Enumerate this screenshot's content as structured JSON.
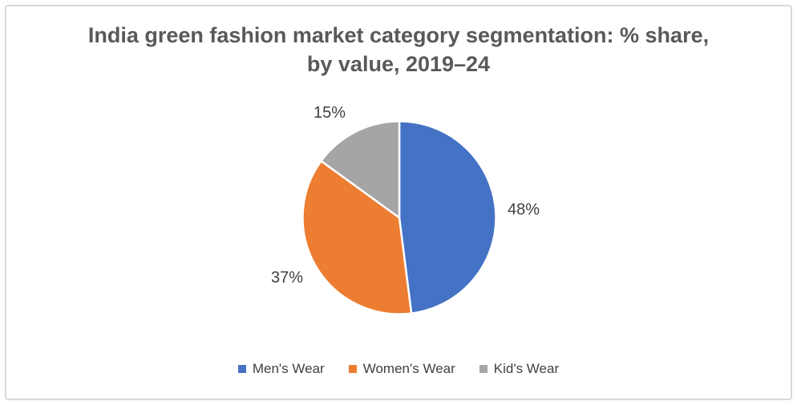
{
  "chart_title": {
    "line1": "India green fashion market category segmentation: % share,",
    "line2": "by value, 2019–24"
  },
  "chart_data": {
    "type": "pie",
    "title": "India green fashion market category segmentation: % share, by value, 2019–24",
    "categories": [
      "Men's Wear",
      "Women's Wear",
      "Kid's Wear"
    ],
    "values": [
      48,
      37,
      15
    ],
    "unit": "%",
    "colors": [
      "#4472C4",
      "#ED7D31",
      "#A5A5A5"
    ],
    "data_labels": [
      "48%",
      "37%",
      "15%"
    ],
    "start_angle_deg": 0,
    "direction": "clockwise",
    "legend_position": "bottom",
    "slice_border_color": "#FFFFFF"
  },
  "legend": {
    "items": [
      {
        "label": "Men's Wear",
        "color": "#4472C4"
      },
      {
        "label": "Women's Wear",
        "color": "#ED7D31"
      },
      {
        "label": "Kid's Wear",
        "color": "#A5A5A5"
      }
    ]
  }
}
